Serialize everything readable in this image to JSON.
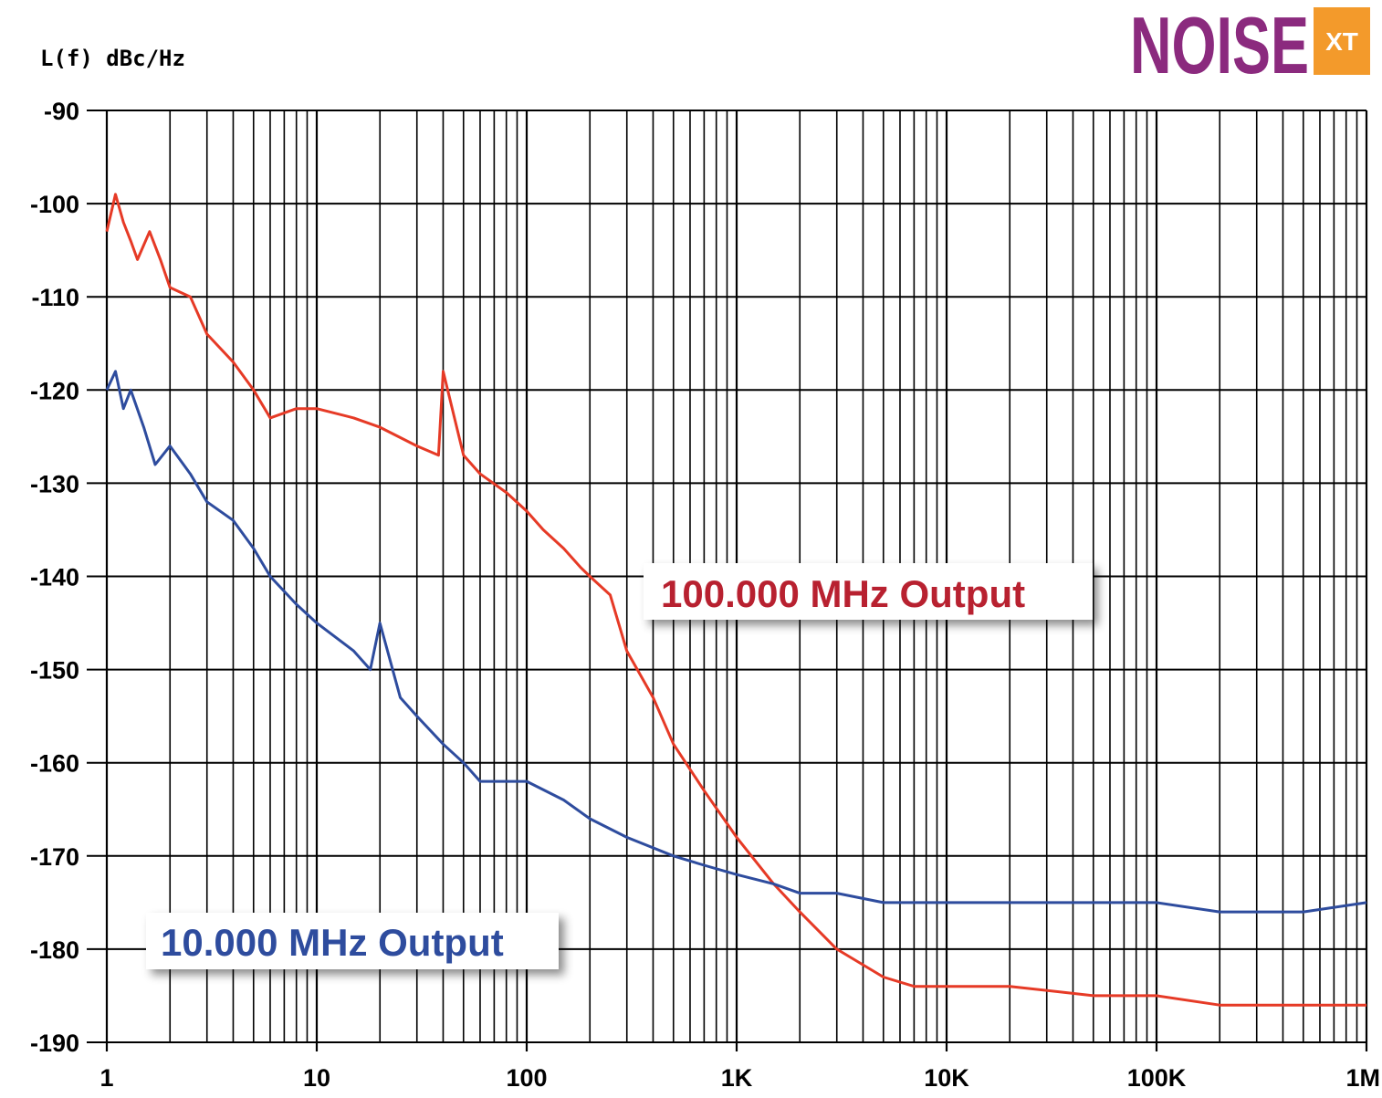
{
  "logo": {
    "word": "NOISE",
    "badge": "XT",
    "word_color": "#8B2A7E",
    "badge_color": "#F39A2B"
  },
  "chart_data": {
    "type": "line",
    "title": "",
    "xlabel": "",
    "ylabel": "L(f) dBc/Hz",
    "x_scale": "log",
    "xlim": [
      1,
      1000000
    ],
    "ylim": [
      -190,
      -90
    ],
    "grid": true,
    "x_ticks": [
      1,
      10,
      100,
      1000,
      10000,
      100000,
      1000000
    ],
    "x_tick_labels": [
      "1",
      "10",
      "100",
      "1K",
      "10K",
      "100K",
      "1M"
    ],
    "y_ticks": [
      -90,
      -100,
      -110,
      -120,
      -130,
      -140,
      -150,
      -160,
      -170,
      -180,
      -190
    ],
    "y_tick_labels": [
      "-90",
      "-100",
      "-110",
      "-120",
      "-130",
      "-140",
      "-150",
      "-160",
      "-170",
      "-180",
      "-190"
    ],
    "series": [
      {
        "name": "100.000 MHz Output",
        "color": "#E63A26",
        "label_color": "#B82130",
        "x": [
          1,
          1.1,
          1.2,
          1.3,
          1.4,
          1.6,
          1.8,
          2,
          2.5,
          3,
          4,
          5,
          6,
          8,
          10,
          15,
          20,
          30,
          38,
          40,
          50,
          60,
          80,
          100,
          120,
          150,
          180,
          200,
          250,
          300,
          400,
          500,
          700,
          1000,
          1500,
          2000,
          3000,
          5000,
          7000,
          10000,
          20000,
          50000,
          100000,
          200000,
          500000,
          1000000
        ],
        "y": [
          -103,
          -99,
          -102,
          -104,
          -106,
          -103,
          -106,
          -109,
          -110,
          -114,
          -117,
          -120,
          -123,
          -122,
          -122,
          -123,
          -124,
          -126,
          -127,
          -118,
          -127,
          -129,
          -131,
          -133,
          -135,
          -137,
          -139,
          -140,
          -142,
          -148,
          -153,
          -158,
          -163,
          -168,
          -173,
          -176,
          -180,
          -183,
          -184,
          -184,
          -184,
          -185,
          -185,
          -186,
          -186,
          -186
        ]
      },
      {
        "name": "10.000 MHz Output",
        "color": "#2E4C9E",
        "label_color": "#2E4C9E",
        "x": [
          1,
          1.1,
          1.2,
          1.3,
          1.5,
          1.7,
          2,
          2.5,
          3,
          4,
          5,
          6,
          8,
          10,
          15,
          18,
          20,
          25,
          30,
          40,
          50,
          60,
          80,
          100,
          150,
          200,
          300,
          500,
          700,
          1000,
          1500,
          2000,
          3000,
          5000,
          10000,
          20000,
          50000,
          100000,
          200000,
          500000,
          1000000
        ],
        "y": [
          -120,
          -118,
          -122,
          -120,
          -124,
          -128,
          -126,
          -129,
          -132,
          -134,
          -137,
          -140,
          -143,
          -145,
          -148,
          -150,
          -145,
          -153,
          -155,
          -158,
          -160,
          -162,
          -162,
          -162,
          -164,
          -166,
          -168,
          -170,
          -171,
          -172,
          -173,
          -174,
          -174,
          -175,
          -175,
          -175,
          -175,
          -175,
          -176,
          -176,
          -175
        ]
      }
    ]
  }
}
